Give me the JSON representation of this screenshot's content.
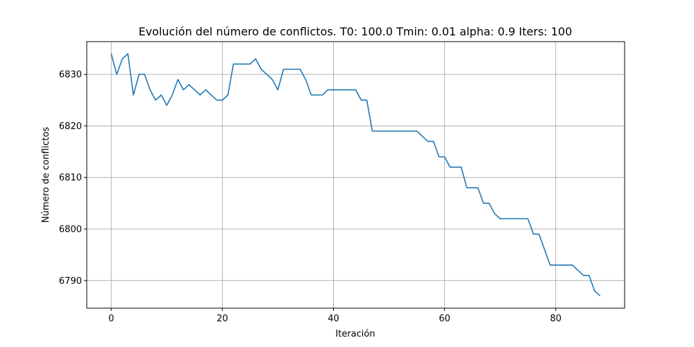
{
  "chart_data": {
    "type": "line",
    "title": "Evolución del número de conflictos. T0: 100.0 Tmin: 0.01 alpha: 0.9 Iters: 100",
    "xlabel": "Iteración",
    "ylabel": "Número de conflictos",
    "xlim": [
      -4.4,
      92.4
    ],
    "ylim": [
      6784.65,
      6836.35
    ],
    "xticks": [
      0,
      20,
      40,
      60,
      80
    ],
    "yticks": [
      6790,
      6800,
      6810,
      6820,
      6830
    ],
    "grid": true,
    "colors": {
      "line": "#1f77b4",
      "grid": "#b0b0b0"
    },
    "series": [
      {
        "x": [
          0,
          1,
          2,
          3,
          4,
          5,
          6,
          7,
          8,
          9,
          10,
          11,
          12,
          13,
          14,
          15,
          16,
          17,
          18,
          19,
          20,
          21,
          22,
          23,
          24,
          25,
          26,
          27,
          28,
          29,
          30,
          31,
          32,
          33,
          34,
          35,
          36,
          37,
          38,
          39,
          40,
          41,
          42,
          43,
          44,
          45,
          46,
          47,
          48,
          49,
          50,
          51,
          52,
          53,
          54,
          55,
          56,
          57,
          58,
          59,
          60,
          61,
          62,
          63,
          64,
          65,
          66,
          67,
          68,
          69,
          70,
          71,
          72,
          73,
          74,
          75,
          76,
          77,
          78,
          79,
          80,
          81,
          82,
          83,
          84,
          85,
          86,
          87,
          88
        ],
        "y": [
          6834,
          6830,
          6833,
          6834,
          6826,
          6830,
          6830,
          6827,
          6825,
          6826,
          6824,
          6826,
          6829,
          6827,
          6828,
          6827,
          6826,
          6827,
          6826,
          6825,
          6825,
          6826,
          6832,
          6832,
          6832,
          6832,
          6833,
          6831,
          6830,
          6829,
          6827,
          6831,
          6831,
          6831,
          6831,
          6829,
          6826,
          6826,
          6826,
          6827,
          6827,
          6827,
          6827,
          6827,
          6827,
          6825,
          6825,
          6819,
          6819,
          6819,
          6819,
          6819,
          6819,
          6819,
          6819,
          6819,
          6818,
          6817,
          6817,
          6814,
          6814,
          6812,
          6812,
          6812,
          6808,
          6808,
          6808,
          6805,
          6805,
          6803,
          6802,
          6802,
          6802,
          6802,
          6802,
          6802,
          6799,
          6799,
          6796,
          6793,
          6793,
          6793,
          6793,
          6793,
          6792,
          6791,
          6791,
          6788,
          6787
        ]
      }
    ]
  }
}
